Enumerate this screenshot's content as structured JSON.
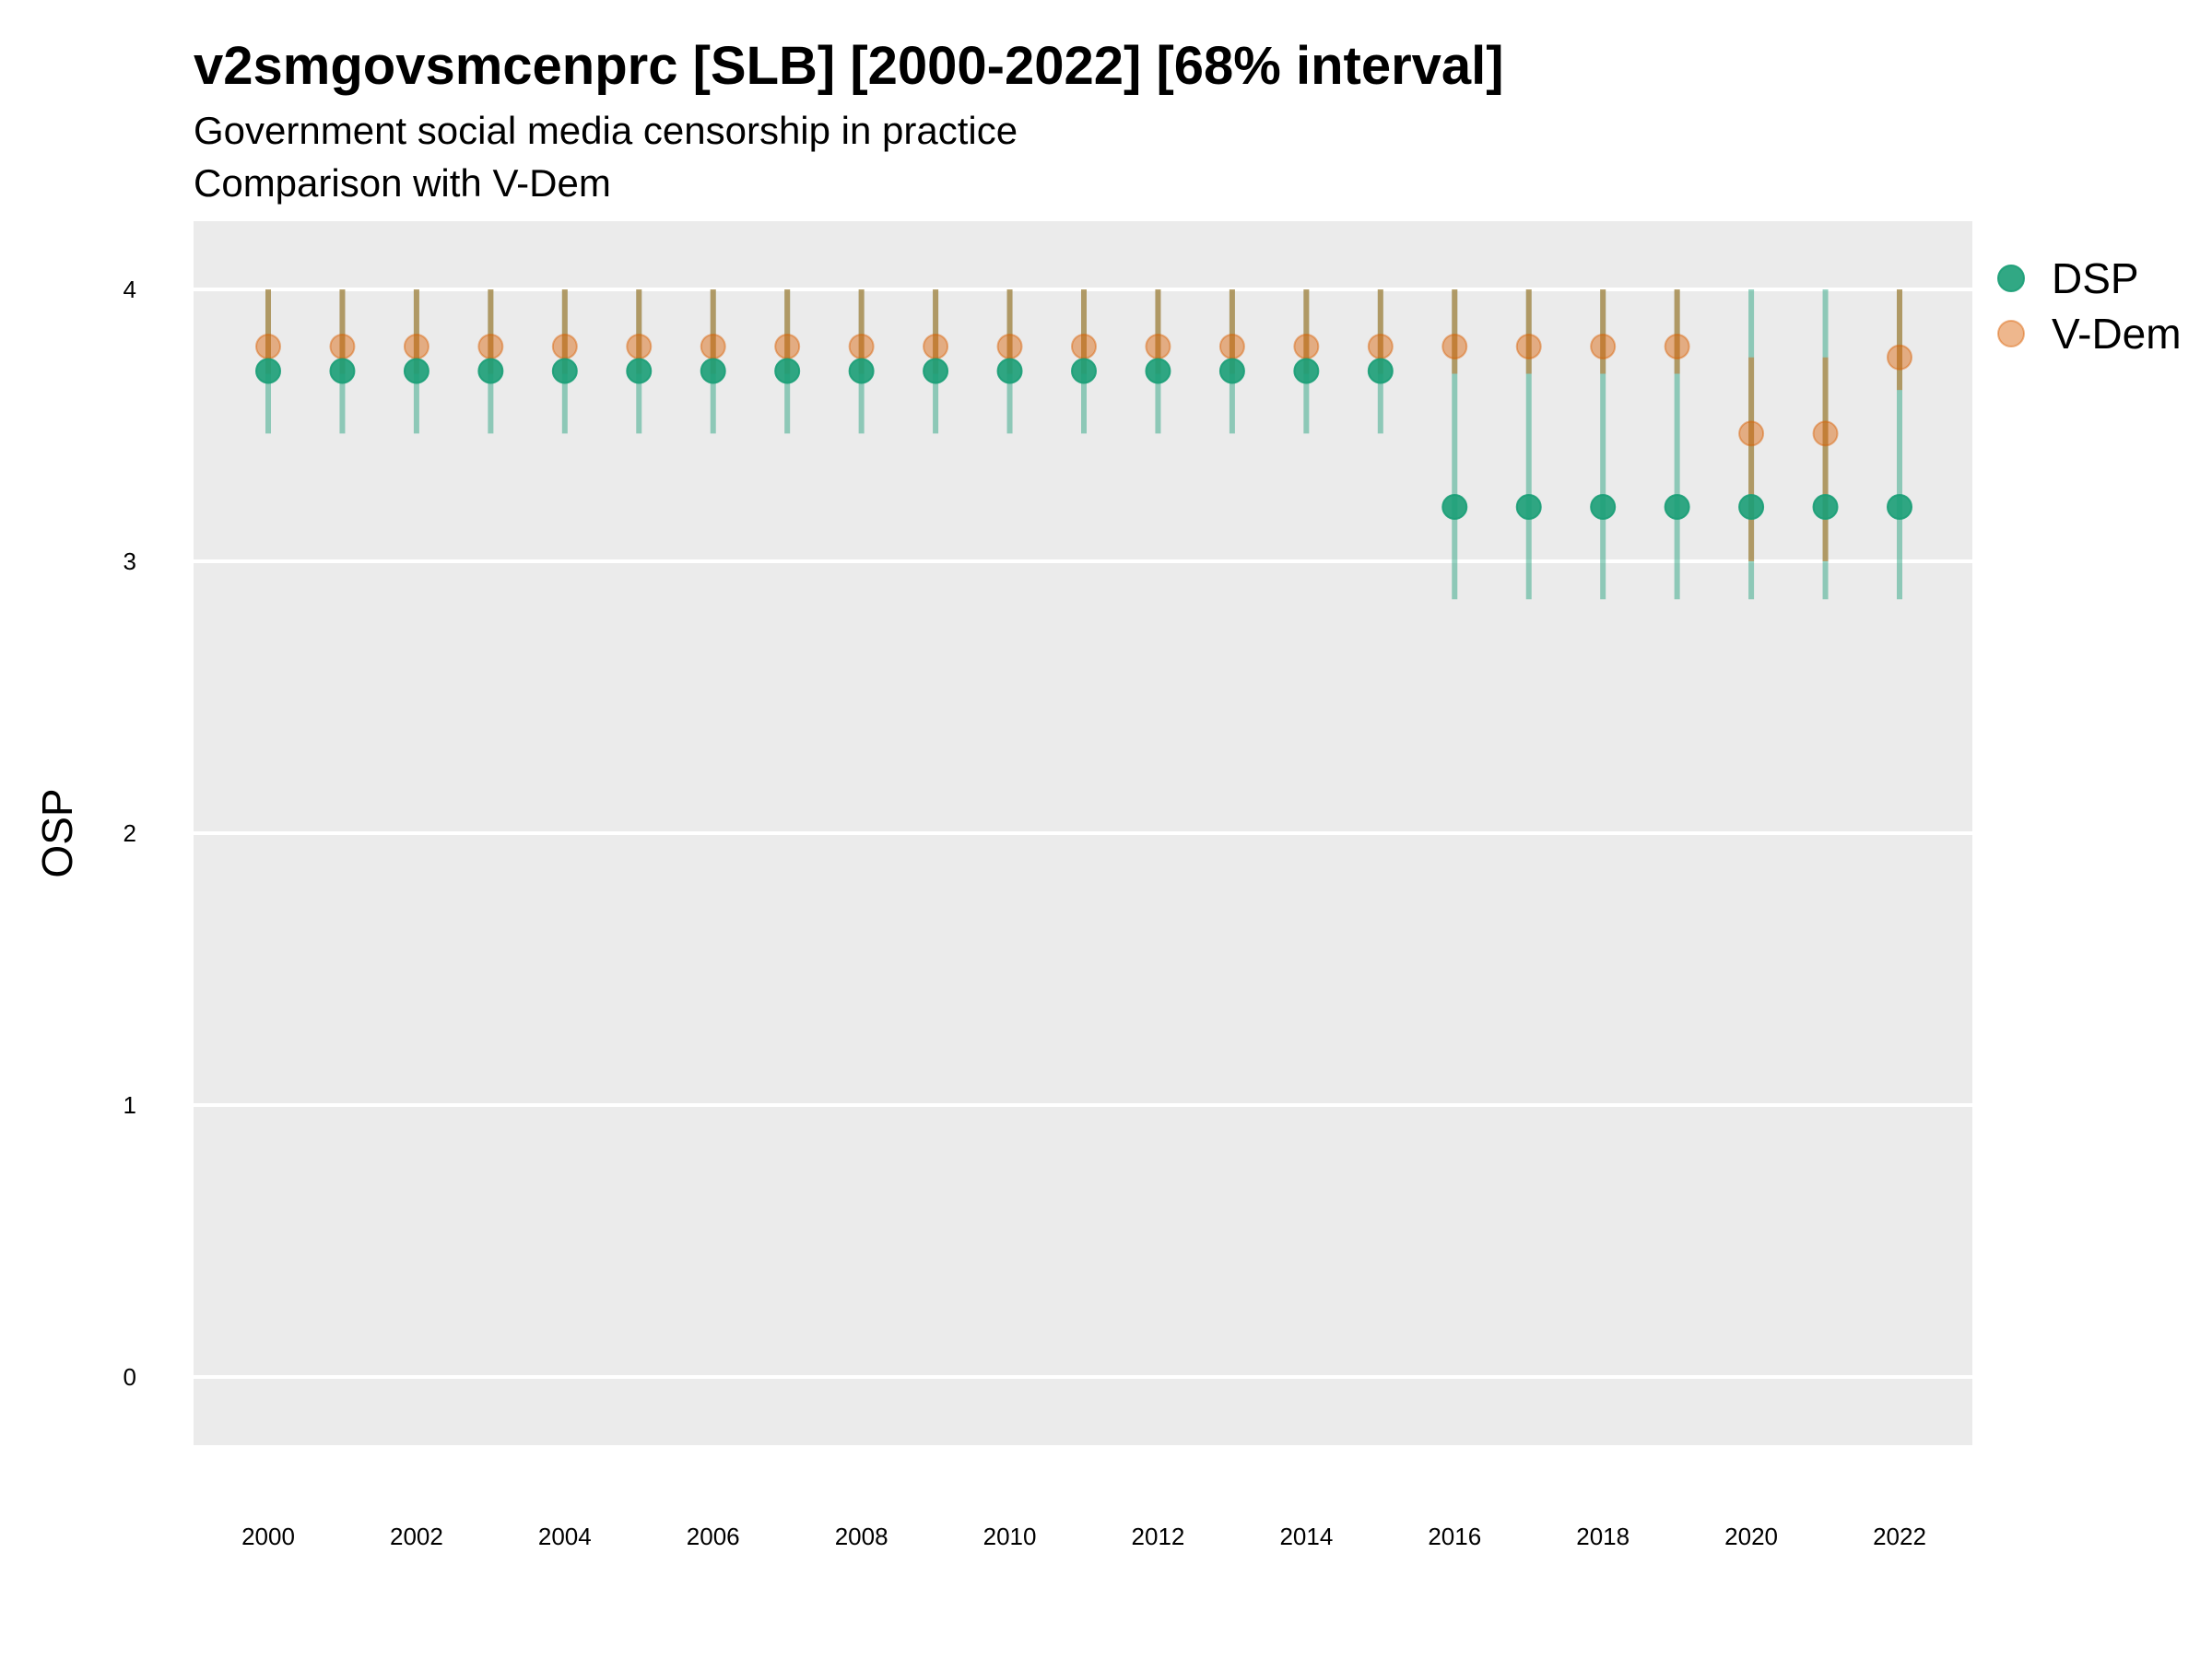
{
  "chart_data": {
    "type": "scatter",
    "title": "v2smgovsmcenprc [SLB] [2000-2022] [68% interval]",
    "subtitle": "Government social media censorship in practice",
    "subtitle2": "Comparison with V-Dem",
    "xlabel": "",
    "ylabel": "OSP",
    "ylim": [
      -0.25,
      4.25
    ],
    "yticks": [
      0,
      1,
      2,
      3,
      4
    ],
    "x": [
      2000,
      2001,
      2002,
      2003,
      2004,
      2005,
      2006,
      2007,
      2008,
      2009,
      2010,
      2011,
      2012,
      2013,
      2014,
      2015,
      2016,
      2017,
      2018,
      2019,
      2020,
      2021,
      2022
    ],
    "xticks": [
      2000,
      2002,
      2004,
      2006,
      2008,
      2010,
      2012,
      2014,
      2016,
      2018,
      2020,
      2022
    ],
    "grid": true,
    "legend_position": "right",
    "series": [
      {
        "name": "DSP",
        "color": "#1b9e77",
        "values": [
          3.7,
          3.7,
          3.7,
          3.7,
          3.7,
          3.7,
          3.7,
          3.7,
          3.7,
          3.7,
          3.7,
          3.7,
          3.7,
          3.7,
          3.7,
          3.7,
          3.2,
          3.2,
          3.2,
          3.2,
          3.2,
          3.2,
          3.2
        ],
        "lower": [
          3.47,
          3.47,
          3.47,
          3.47,
          3.47,
          3.47,
          3.47,
          3.47,
          3.47,
          3.47,
          3.47,
          3.47,
          3.47,
          3.47,
          3.47,
          3.47,
          2.86,
          2.86,
          2.86,
          2.86,
          2.86,
          2.86,
          2.86
        ],
        "upper": [
          4,
          4,
          4,
          4,
          4,
          4,
          4,
          4,
          4,
          4,
          4,
          4,
          4,
          4,
          4,
          4,
          4,
          4,
          4,
          4,
          4,
          4,
          4
        ]
      },
      {
        "name": "V-Dem",
        "color": "#d95f02",
        "values": [
          3.79,
          3.79,
          3.79,
          3.79,
          3.79,
          3.79,
          3.79,
          3.79,
          3.79,
          3.79,
          3.79,
          3.79,
          3.79,
          3.79,
          3.79,
          3.79,
          3.79,
          3.79,
          3.79,
          3.79,
          3.47,
          3.47,
          3.75
        ],
        "lower": [
          3.69,
          3.69,
          3.69,
          3.69,
          3.69,
          3.69,
          3.69,
          3.69,
          3.69,
          3.69,
          3.69,
          3.69,
          3.69,
          3.69,
          3.69,
          3.69,
          3.69,
          3.69,
          3.69,
          3.69,
          3.0,
          3.0,
          3.63
        ],
        "upper": [
          4,
          4,
          4,
          4,
          4,
          4,
          4,
          4,
          4,
          4,
          4,
          4,
          4,
          4,
          4,
          4,
          4,
          4,
          4,
          4,
          3.75,
          3.75,
          4
        ]
      }
    ]
  }
}
